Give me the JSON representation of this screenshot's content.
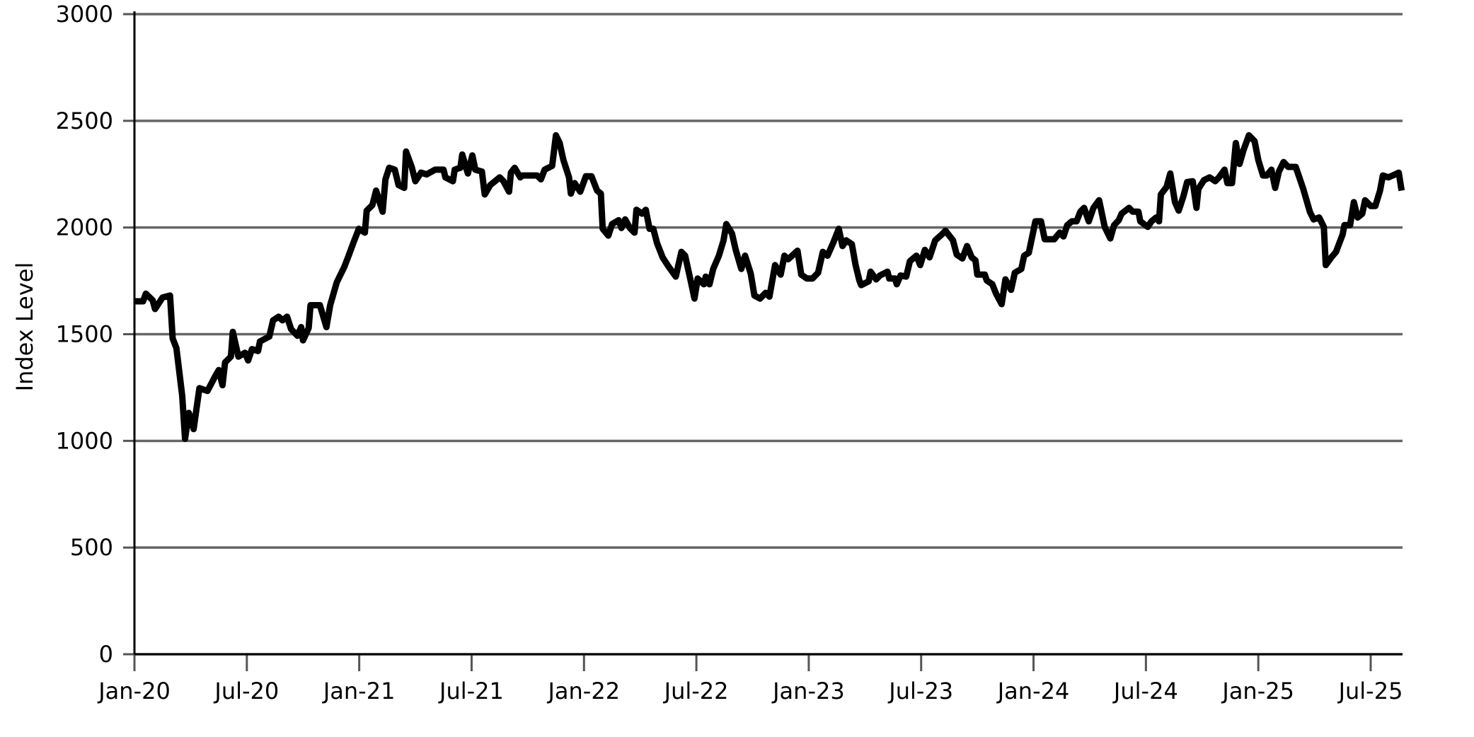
{
  "chart_data": {
    "type": "line",
    "ylabel": "Index Level",
    "color": "#000000",
    "grid": true,
    "xlim": [
      0,
      67.7
    ],
    "ylim": [
      0,
      3000
    ],
    "yticks": [
      0,
      500,
      1000,
      1500,
      2000,
      2500,
      3000
    ],
    "xticks": [
      {
        "value": 0,
        "label": "Jan-20"
      },
      {
        "value": 6,
        "label": "Jul-20"
      },
      {
        "value": 12,
        "label": "Jan-21"
      },
      {
        "value": 18,
        "label": "Jul-21"
      },
      {
        "value": 24,
        "label": "Jan-22"
      },
      {
        "value": 30,
        "label": "Jul-22"
      },
      {
        "value": 36,
        "label": "Jan-23"
      },
      {
        "value": 42,
        "label": "Jul-23"
      },
      {
        "value": 48,
        "label": "Jan-24"
      },
      {
        "value": 54,
        "label": "Jul-24"
      },
      {
        "value": 60,
        "label": "Jan-25"
      },
      {
        "value": 66,
        "label": "Jul-25"
      }
    ],
    "x": [
      0,
      0.46,
      0.61,
      0.97,
      1.1,
      1.5,
      1.9,
      2.04,
      2.24,
      2.55,
      2.7,
      2.9,
      3.16,
      3.47,
      3.9,
      4.3,
      4.5,
      4.7,
      4.84,
      5.15,
      5.25,
      5.55,
      5.9,
      6.07,
      6.27,
      6.6,
      6.7,
      7.2,
      7.4,
      7.7,
      7.9,
      8.15,
      8.36,
      8.7,
      8.9,
      9.0,
      9.3,
      9.4,
      9.9,
      10.25,
      10.45,
      10.8,
      11.2,
      11.4,
      11.7,
      11.98,
      12.3,
      12.4,
      12.7,
      12.9,
      13.25,
      13.4,
      13.6,
      13.9,
      14.1,
      14.4,
      14.5,
      14.8,
      15.0,
      15.3,
      15.6,
      16.05,
      16.5,
      16.6,
      17.0,
      17.1,
      17.4,
      17.5,
      17.8,
      18.04,
      18.2,
      18.55,
      18.7,
      19.0,
      19.5,
      19.7,
      20.0,
      20.1,
      20.3,
      20.6,
      20.7,
      21.5,
      21.7,
      21.9,
      22.3,
      22.5,
      22.7,
      22.9,
      23.2,
      23.3,
      23.5,
      23.8,
      24.1,
      24.4,
      24.7,
      24.9,
      25.0,
      25.3,
      25.5,
      25.85,
      26.0,
      26.2,
      26.45,
      26.7,
      26.8,
      27.1,
      27.3,
      27.5,
      27.7,
      27.9,
      28.2,
      28.5,
      28.9,
      29.2,
      29.4,
      29.7,
      29.9,
      30.07,
      30.4,
      30.5,
      30.7,
      30.9,
      31.2,
      31.45,
      31.6,
      31.9,
      32.1,
      32.4,
      32.6,
      32.9,
      33.1,
      33.4,
      33.7,
      33.9,
      34.2,
      34.5,
      34.7,
      34.9,
      35.4,
      35.6,
      35.9,
      36.2,
      36.5,
      36.75,
      37.0,
      37.3,
      37.6,
      37.8,
      38.0,
      38.3,
      38.5,
      38.7,
      38.8,
      39.2,
      39.3,
      39.6,
      39.8,
      40.2,
      40.3,
      40.6,
      40.7,
      40.9,
      41.2,
      41.4,
      41.75,
      41.95,
      42.2,
      42.45,
      42.75,
      43.1,
      43.3,
      43.7,
      43.9,
      44.2,
      44.45,
      44.7,
      44.9,
      45.0,
      45.4,
      45.5,
      45.8,
      46.0,
      46.3,
      46.5,
      46.8,
      47.0,
      47.35,
      47.5,
      47.75,
      48.1,
      48.4,
      48.6,
      49.1,
      49.4,
      49.6,
      49.8,
      50.05,
      50.3,
      50.5,
      50.7,
      50.95,
      51.2,
      51.5,
      51.8,
      52.1,
      52.3,
      52.55,
      52.7,
      53.1,
      53.3,
      53.6,
      53.7,
      54.1,
      54.3,
      54.55,
      54.7,
      54.8,
      55.1,
      55.3,
      55.55,
      55.75,
      56.0,
      56.2,
      56.5,
      56.7,
      56.8,
      57.1,
      57.4,
      57.7,
      57.9,
      58.2,
      58.35,
      58.6,
      58.8,
      59.0,
      59.2,
      59.5,
      59.8,
      60.0,
      60.25,
      60.45,
      60.7,
      60.9,
      61.1,
      61.35,
      61.6,
      62.0,
      62.4,
      62.75,
      62.95,
      63.25,
      63.5,
      63.6,
      63.9,
      64.15,
      64.5,
      64.6,
      64.9,
      65.1,
      65.3,
      65.55,
      65.7,
      66.0,
      66.25,
      66.5,
      66.65,
      66.95,
      67.3,
      67.5,
      67.65
    ],
    "values": [
      1654,
      1654,
      1690,
      1659,
      1618,
      1672,
      1681,
      1480,
      1435,
      1211,
      1010,
      1131,
      1055,
      1247,
      1234,
      1301,
      1332,
      1261,
      1368,
      1395,
      1511,
      1395,
      1413,
      1377,
      1430,
      1421,
      1466,
      1489,
      1565,
      1582,
      1565,
      1582,
      1524,
      1493,
      1533,
      1471,
      1529,
      1636,
      1636,
      1533,
      1636,
      1743,
      1815,
      1860,
      1931,
      1994,
      1976,
      2079,
      2105,
      2173,
      2074,
      2226,
      2280,
      2271,
      2199,
      2186,
      2356,
      2284,
      2217,
      2257,
      2249,
      2271,
      2271,
      2235,
      2217,
      2271,
      2280,
      2342,
      2253,
      2338,
      2271,
      2262,
      2155,
      2199,
      2235,
      2217,
      2168,
      2257,
      2280,
      2235,
      2244,
      2244,
      2226,
      2271,
      2289,
      2432,
      2396,
      2316,
      2235,
      2159,
      2208,
      2168,
      2240,
      2240,
      2173,
      2159,
      1994,
      1962,
      2016,
      2034,
      1998,
      2038,
      1998,
      1976,
      2083,
      2065,
      2083,
      1994,
      1994,
      1927,
      1860,
      1819,
      1770,
      1886,
      1868,
      1748,
      1667,
      1761,
      1734,
      1770,
      1734,
      1806,
      1868,
      1940,
      2016,
      1972,
      1895,
      1806,
      1868,
      1784,
      1681,
      1667,
      1694,
      1676,
      1824,
      1779,
      1868,
      1851,
      1891,
      1779,
      1761,
      1761,
      1788,
      1886,
      1868,
      1927,
      1994,
      1913,
      1940,
      1922,
      1824,
      1752,
      1730,
      1748,
      1793,
      1757,
      1775,
      1793,
      1761,
      1761,
      1734,
      1775,
      1770,
      1842,
      1868,
      1824,
      1895,
      1860,
      1940,
      1967,
      1985,
      1940,
      1873,
      1855,
      1913,
      1860,
      1846,
      1779,
      1779,
      1752,
      1734,
      1690,
      1641,
      1757,
      1708,
      1788,
      1806,
      1868,
      1882,
      2029,
      2029,
      1945,
      1945,
      1976,
      1958,
      2011,
      2029,
      2029,
      2074,
      2092,
      2029,
      2092,
      2128,
      2003,
      1949,
      2011,
      2034,
      2065,
      2092,
      2074,
      2074,
      2029,
      2003,
      2029,
      2047,
      2029,
      2155,
      2190,
      2253,
      2119,
      2079,
      2146,
      2213,
      2217,
      2092,
      2181,
      2222,
      2235,
      2217,
      2235,
      2271,
      2208,
      2208,
      2396,
      2298,
      2360,
      2432,
      2405,
      2316,
      2244,
      2244,
      2271,
      2186,
      2262,
      2307,
      2284,
      2284,
      2181,
      2074,
      2038,
      2047,
      2003,
      1824,
      1860,
      1886,
      1967,
      2011,
      2011,
      2119,
      2047,
      2065,
      2128,
      2101,
      2101,
      2173,
      2244,
      2235,
      2249,
      2257,
      2173
    ]
  }
}
